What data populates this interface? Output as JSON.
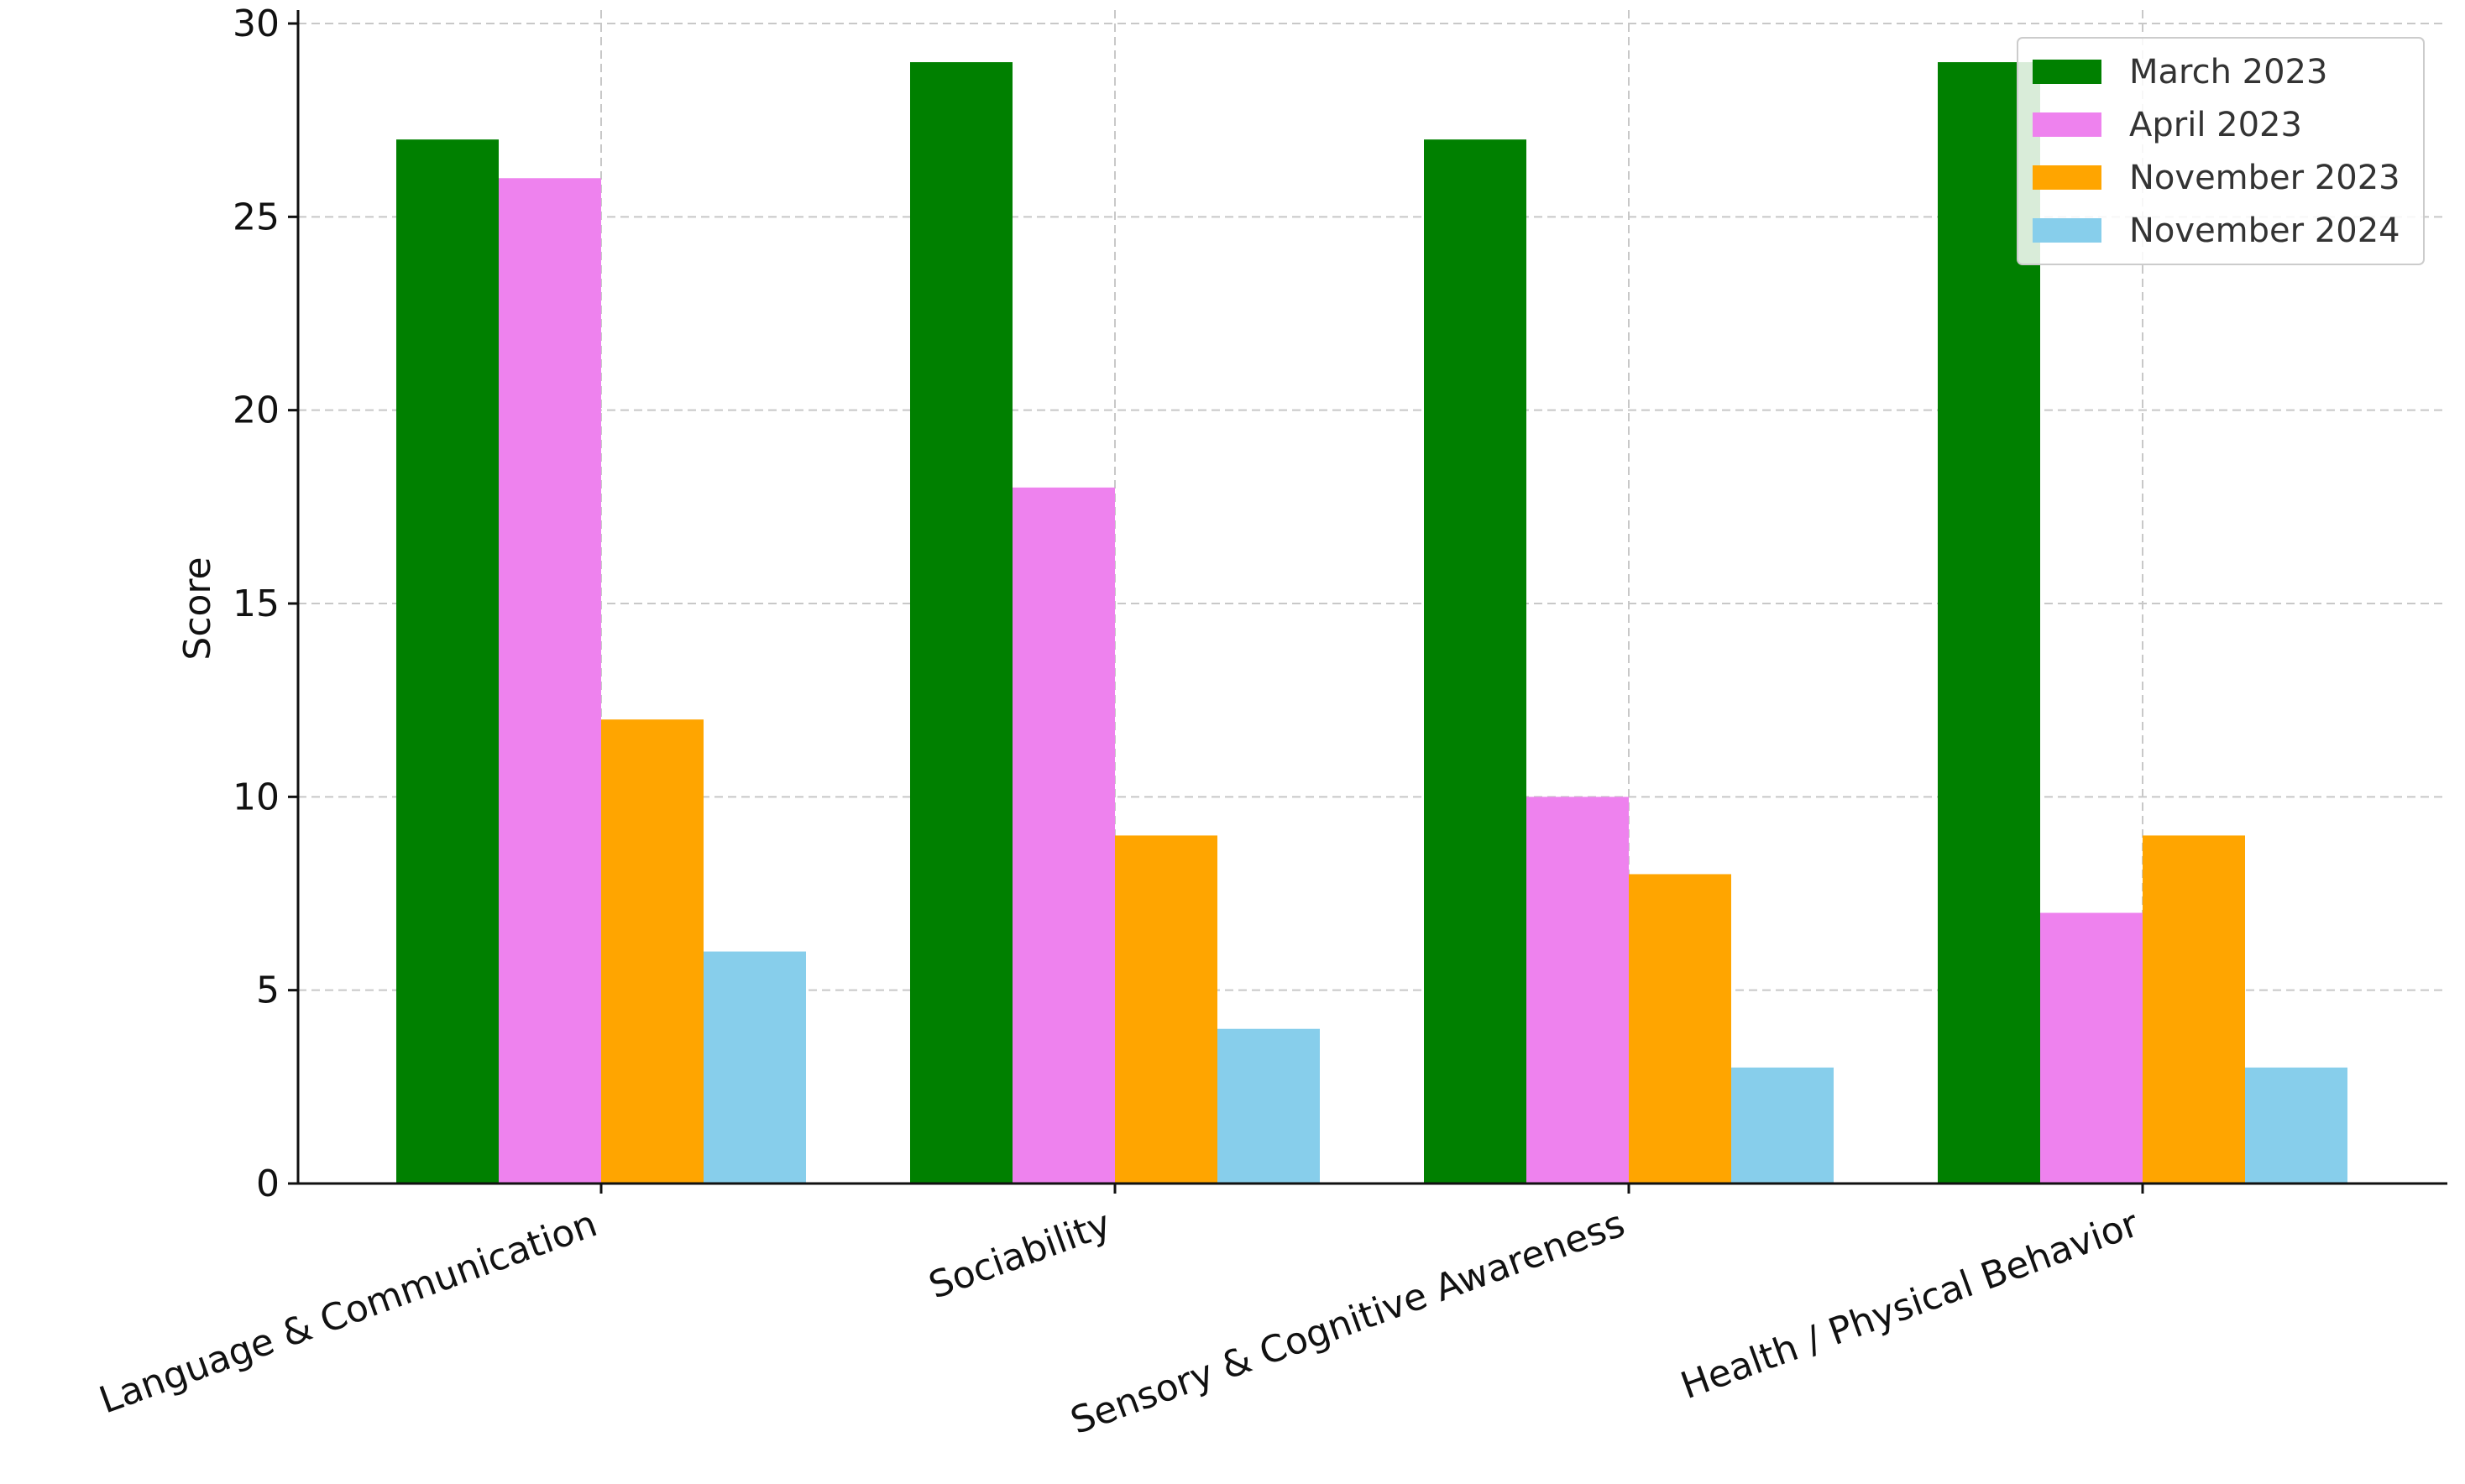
{
  "chart_data": {
    "type": "bar",
    "title": "",
    "xlabel": "",
    "ylabel": "Score",
    "ylim": [
      0,
      30
    ],
    "yticks": [
      0,
      5,
      10,
      15,
      20,
      25,
      30
    ],
    "grid": true,
    "legend_position": "top-right",
    "categories": [
      "Language & Communication",
      "Sociability",
      "Sensory & Cognitive Awareness",
      "Health / Physical Behavior"
    ],
    "series": [
      {
        "name": "March 2023",
        "color": "#008000",
        "values": [
          27,
          29,
          27,
          29
        ]
      },
      {
        "name": "April 2023",
        "color": "#ee82ee",
        "values": [
          26,
          18,
          10,
          7
        ]
      },
      {
        "name": "November 2023",
        "color": "#ffa500",
        "values": [
          12,
          9,
          8,
          9
        ]
      },
      {
        "name": "November 2024",
        "color": "#87ceeb",
        "values": [
          6,
          4,
          3,
          3
        ]
      }
    ]
  }
}
